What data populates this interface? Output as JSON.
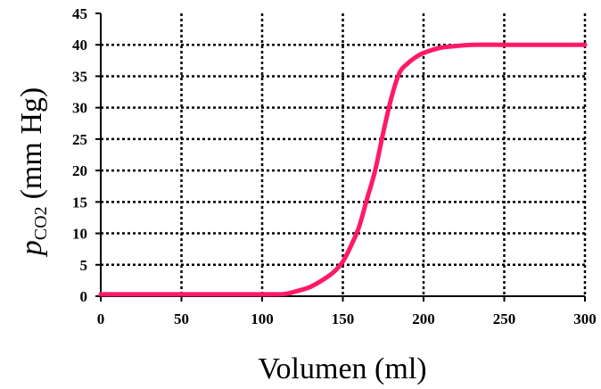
{
  "chart_data": {
    "type": "line",
    "xlabel": "Volumen (ml)",
    "ylabel": {
      "symbol": "p",
      "subscript": "CO2",
      "unit": "(mm Hg)"
    },
    "xlim": [
      0,
      300
    ],
    "ylim": [
      0,
      45
    ],
    "x_ticks": [
      0,
      50,
      100,
      150,
      200,
      250,
      300
    ],
    "y_ticks": [
      0,
      5,
      10,
      15,
      20,
      25,
      30,
      35,
      40,
      45
    ],
    "grid": true,
    "grid_style": "dotted",
    "line_color": "#ff1a66",
    "series": [
      {
        "x": [
          0,
          20,
          40,
          60,
          80,
          100,
          110,
          115,
          120,
          130,
          140,
          145,
          150,
          155,
          160,
          165,
          170,
          175,
          180,
          185,
          190,
          195,
          200,
          210,
          220,
          230,
          250,
          270,
          300
        ],
        "y": [
          0.3,
          0.3,
          0.3,
          0.3,
          0.3,
          0.3,
          0.3,
          0.4,
          0.7,
          1.5,
          3.0,
          4.0,
          5.5,
          8.0,
          11.0,
          15.5,
          20.0,
          26.0,
          31.5,
          35.5,
          37.0,
          38.0,
          38.7,
          39.5,
          39.8,
          40.0,
          40.0,
          40.0,
          40.0
        ]
      }
    ]
  }
}
